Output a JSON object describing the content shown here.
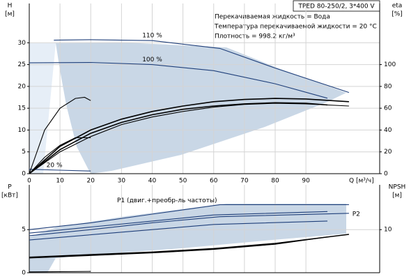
{
  "chart_data": [
    {
      "type": "line",
      "title": "TPED 80-250/2, 3*400 V",
      "annotations": [
        "Перекачиваемая жидкость = Вода",
        "Температура перекачиваемой жидкости = 20 °C",
        "Плотность = 998.2 кг/м³"
      ],
      "ylabel": [
        "H",
        "[м]"
      ],
      "y2label": [
        "eta",
        "[%]"
      ],
      "xlabel": "Q [м³/ч]",
      "xlim": [
        0,
        114
      ],
      "xticks": [
        0,
        10,
        20,
        30,
        40,
        50,
        60,
        70,
        80,
        90
      ],
      "ylim": [
        0,
        39
      ],
      "yticks": [
        0,
        5,
        10,
        15,
        20,
        25,
        30
      ],
      "y2lim": [
        0,
        156
      ],
      "y2ticks": [
        0,
        20,
        40,
        60,
        80,
        100
      ],
      "grid": true,
      "series": [
        {
          "label": "110 %",
          "color": "#1f3f7a",
          "x": [
            8,
            20,
            40,
            62,
            80,
            104
          ],
          "values": [
            30.6,
            30.7,
            30.5,
            28.7,
            24.2,
            18.6
          ]
        },
        {
          "label": "100 %",
          "color": "#1f3f7a",
          "x": [
            0,
            20,
            40,
            60,
            80,
            97
          ],
          "values": [
            25.4,
            25.5,
            25.0,
            23.6,
            20.6,
            17.3
          ]
        },
        {
          "label": "20 %",
          "color": "#1f3f7a",
          "x": [
            0,
            10,
            20
          ],
          "values": [
            1.0,
            0.8,
            0.6
          ]
        },
        {
          "axis": "y2",
          "color": "#000000",
          "x": [
            0,
            10,
            20,
            30,
            40,
            50,
            60,
            70,
            80,
            90,
            104
          ],
          "values": [
            0,
            25,
            40,
            50,
            57,
            62,
            66,
            68,
            69,
            68.5,
            66
          ]
        },
        {
          "axis": "y2",
          "color": "#000000",
          "x": [
            0,
            10,
            20,
            30,
            40,
            50,
            60,
            70,
            80,
            90,
            97
          ],
          "values": [
            0,
            22,
            37,
            47,
            54,
            59,
            62,
            64,
            65,
            64.5,
            63
          ]
        },
        {
          "axis": "y2",
          "color": "#000000",
          "x": [
            0,
            10,
            20,
            30,
            40,
            50,
            60,
            70,
            80,
            90,
            104
          ],
          "values": [
            0,
            20,
            34,
            45,
            52,
            57,
            61,
            63.5,
            64.5,
            64,
            62
          ]
        },
        {
          "axis": "y2",
          "color": "#000000",
          "x": [
            0,
            5,
            10,
            15,
            18,
            20
          ],
          "values": [
            0,
            40,
            60,
            69,
            70,
            67
          ]
        },
        {
          "axis": "y2",
          "color": "#000000",
          "x": [
            0,
            5,
            10,
            15,
            20
          ],
          "values": [
            0,
            15,
            26,
            33,
            33
          ]
        }
      ]
    },
    {
      "type": "line",
      "ylabel": [
        "P",
        "[кВт]"
      ],
      "y2label": [
        "NPSH",
        "[м]"
      ],
      "xlim": [
        0,
        114
      ],
      "ylim": [
        0,
        10.2
      ],
      "yticks": [
        0,
        5
      ],
      "y2lim": [
        0,
        20.4
      ],
      "y2ticks": [
        10
      ],
      "grid": true,
      "series": [
        {
          "label": "P1 (двиг.+преобр-ль частоты)",
          "color": "#1f3f7a",
          "x": [
            0,
            20,
            40,
            62,
            104
          ],
          "values": [
            5.0,
            5.8,
            6.8,
            7.9,
            7.9
          ]
        },
        {
          "color": "#1f3f7a",
          "x": [
            0,
            20,
            40,
            60,
            97
          ],
          "values": [
            4.6,
            5.3,
            6.0,
            6.7,
            7.1
          ]
        },
        {
          "label": "P2",
          "color": "#1f3f7a",
          "x": [
            0,
            20,
            40,
            62,
            104
          ],
          "values": [
            4.3,
            5.0,
            5.8,
            6.5,
            6.9
          ]
        },
        {
          "color": "#1f3f7a",
          "x": [
            0,
            20,
            40,
            60,
            97
          ],
          "values": [
            3.8,
            4.4,
            5.0,
            5.6,
            6.0
          ]
        },
        {
          "axis": "y2",
          "color": "#000000",
          "x": [
            0,
            20,
            40,
            60,
            80,
            104
          ],
          "values": [
            3.6,
            4.2,
            4.8,
            5.6,
            6.8,
            8.9
          ]
        },
        {
          "axis": "y2",
          "color": "#000000",
          "x": [
            0,
            20,
            40,
            60,
            80,
            97
          ],
          "values": [
            3.4,
            4.0,
            4.6,
            5.4,
            6.6,
            8.3
          ]
        },
        {
          "color": "#000000",
          "x": [
            0,
            20
          ],
          "values": [
            0.1,
            0.15
          ]
        }
      ]
    }
  ]
}
